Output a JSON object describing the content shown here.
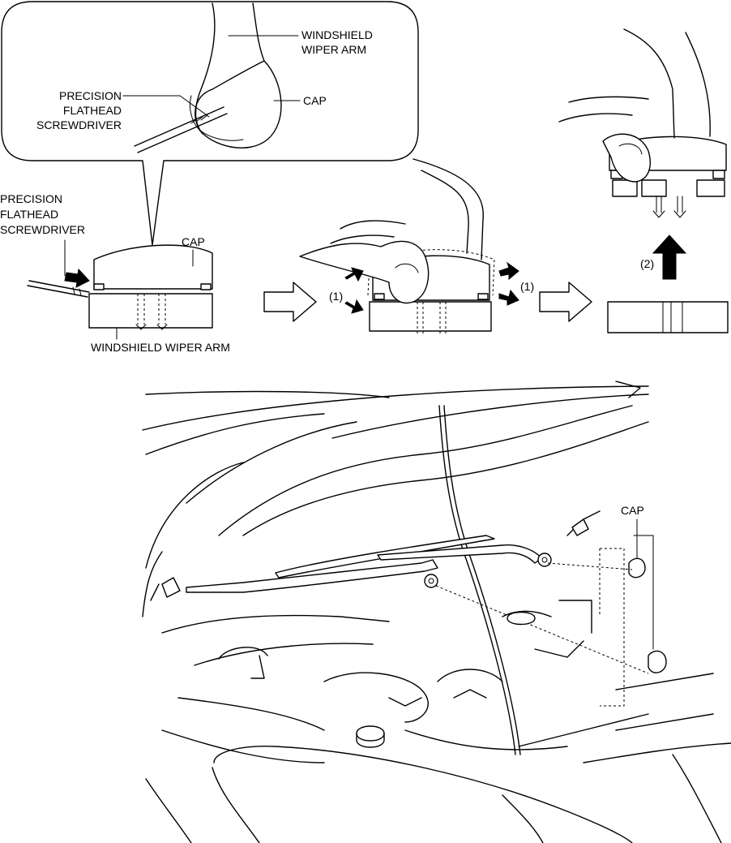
{
  "labels": {
    "windshield_wiper_arm_callout": "WINDSHIELD\nWIPER ARM",
    "cap_callout": "CAP",
    "precision_flathead_screwdriver_callout": "PRECISION\nFLATHEAD\nSCREWDRIVER",
    "precision_flathead_screwdriver": "PRECISION\nFLATHEAD\nSCREWDRIVER",
    "cap_side": "CAP",
    "windshield_wiper_arm": "WINDSHIELD WIPER ARM",
    "step_1_left": "(1)",
    "step_1_right": "(1)",
    "step_2": "(2)",
    "cap_vehicle": "CAP"
  },
  "icons": [
    "hand-icon",
    "flow-arrow-icon",
    "push-arrow-icon",
    "lift-arrow-icon"
  ],
  "colors": {
    "line": "#000000",
    "background": "#ffffff"
  }
}
